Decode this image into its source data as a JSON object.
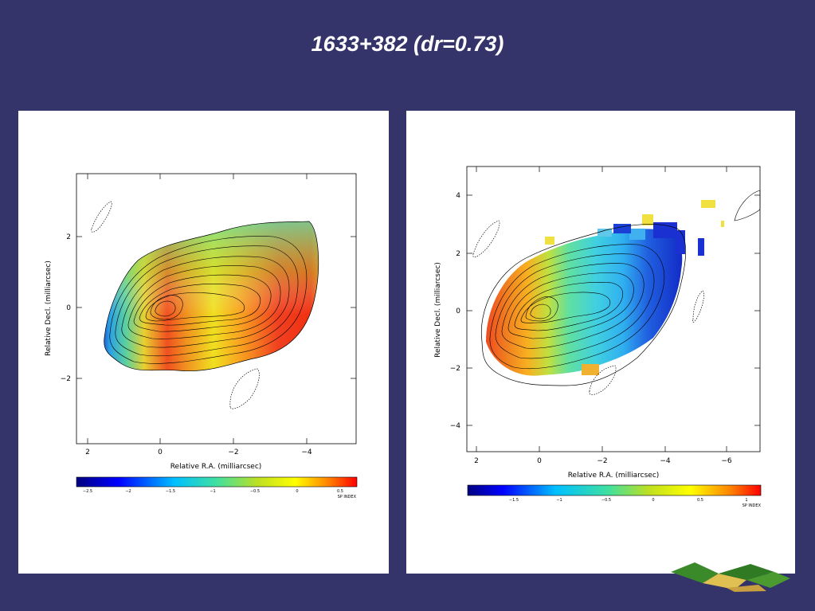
{
  "slide": {
    "title": "1633+382 (dr=0.73)"
  },
  "left_map": {
    "xlabel": "Relative R.A. (milliarcsec)",
    "ylabel": "Relative Decl. (milliarcsec)",
    "xticks": [
      "2",
      "0",
      "−2",
      "−4"
    ],
    "yticks": [
      "2",
      "0",
      "−2"
    ],
    "colorbar_ticks": [
      "−2.5",
      "−2",
      "−1.5",
      "−1",
      "−0.5",
      "0",
      "0.5"
    ],
    "colorbar_label": "SP INDEX"
  },
  "right_map": {
    "xlabel": "Relative R.A. (milliarcsec)",
    "ylabel": "Relative Decl. (milliarcsec)",
    "xticks": [
      "2",
      "0",
      "−2",
      "−4",
      "−6"
    ],
    "yticks": [
      "4",
      "2",
      "0",
      "−2",
      "−4"
    ],
    "colorbar_ticks": [
      "−1.5",
      "−1",
      "−0.5",
      "0",
      "0.5",
      "1"
    ],
    "colorbar_label": "SP INDEX"
  },
  "colors": {
    "background": "#35346a",
    "title": "#ffffff",
    "panel": "#ffffff"
  }
}
